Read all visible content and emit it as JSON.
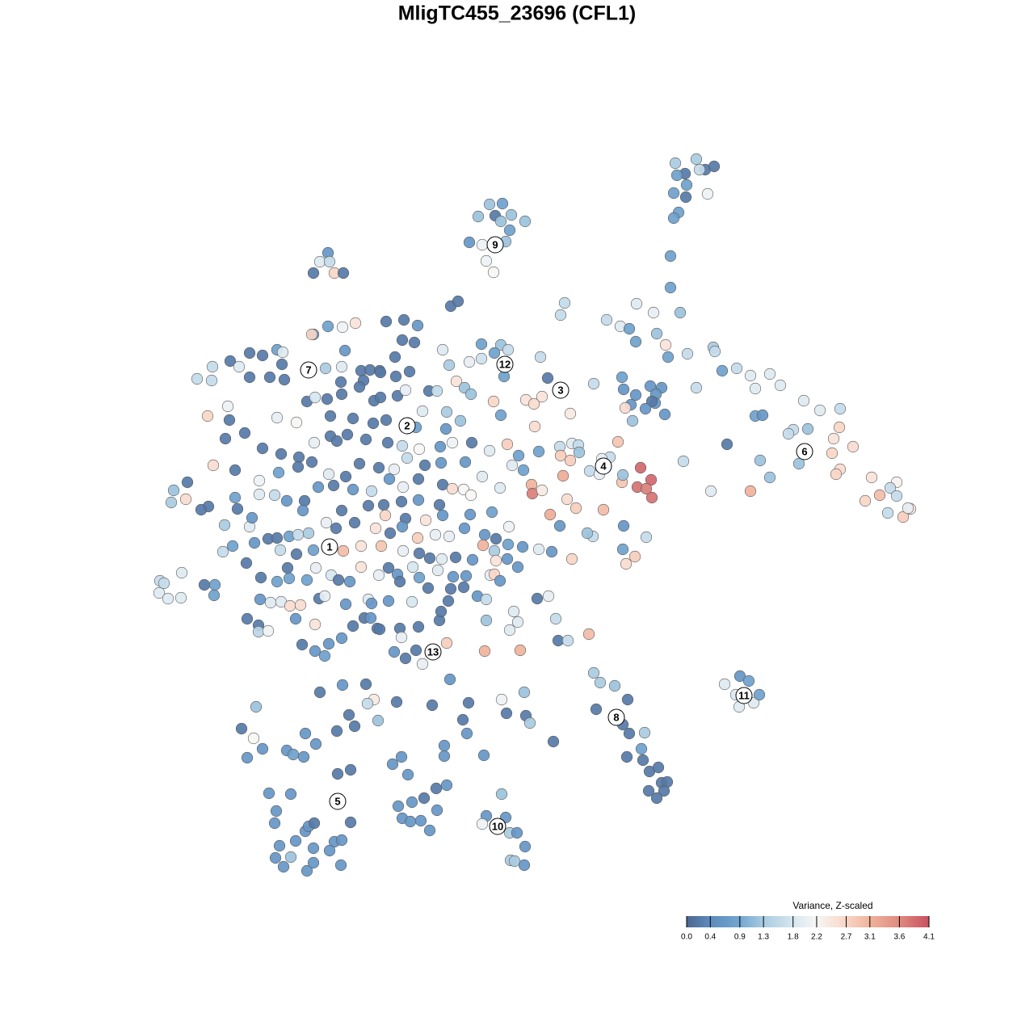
{
  "chart_data": {
    "type": "scatter",
    "title": "MligTC455_23696 (CFL1)",
    "xlim": [
      190,
      1135
    ],
    "ylim": [
      1080,
      190
    ],
    "x": [
      836,
      862,
      873,
      884,
      848,
      838,
      866,
      850,
      834,
      849,
      876,
      840,
      834,
      830,
      830,
      606,
      622,
      592,
      613,
      620,
      633,
      650,
      631,
      581,
      597,
      626,
      602,
      611,
      406,
      396,
      408,
      388,
      414,
      425,
      558,
      567,
      699,
      694,
      788,
      809,
      751,
      768,
      779,
      842,
      813,
      787,
      824,
      827,
      851,
      883,
      885,
      596,
      620,
      629,
      612,
      548,
      596,
      581,
      669,
      624,
      556,
      565,
      575,
      583,
      611,
      651,
      661,
      671,
      678,
      620,
      662,
      706,
      735,
      770,
      772,
      787,
      805,
      819,
      812,
      811,
      807,
      781,
      799,
      774,
      783,
      823,
      862,
      894,
      912,
      929,
      953,
      966,
      935,
      935,
      944,
      995,
      1015,
      1040,
      982,
      976,
      1000,
      1039,
      1032,
      1056,
      900,
      989,
      1030,
      1040,
      1035,
      1079,
      1110,
      1102,
      1110,
      1089,
      1071,
      1099,
      1127,
      1118,
      1124,
      846,
      880,
      929,
      941,
      953,
      693,
      708,
      716,
      694,
      706,
      717,
      765,
      755,
      745,
      730,
      742,
      793,
      806,
      789,
      807,
      770,
      771,
      800,
      697,
      658,
      659,
      671,
      702,
      713,
      681,
      747,
      693,
      734,
      772,
      800,
      771,
      786,
      775,
      708,
      727,
      244,
      263,
      262,
      285,
      296,
      309,
      325,
      343,
      350,
      349,
      309,
      334,
      352,
      388,
      406,
      424,
      440,
      386,
      500,
      517,
      478,
      498,
      513,
      489,
      427,
      403,
      423,
      447,
      458,
      470,
      490,
      507,
      422,
      450,
      471,
      380,
      390,
      405,
      423,
      445,
      463,
      471,
      492,
      502,
      531,
      541,
      282,
      284,
      257,
      279,
      303,
      343,
      367,
      409,
      437,
      462,
      478,
      523,
      553,
      570,
      515,
      552,
      409,
      417,
      430,
      453,
      480,
      498,
      519,
      545,
      560,
      584,
      606,
      628,
      642,
      667,
      325,
      348,
      370,
      386,
      389,
      407,
      428,
      445,
      469,
      488,
      504,
      526,
      546,
      576,
      597,
      634,
      648,
      264,
      291,
      321,
      345,
      369,
      394,
      413,
      437,
      460,
      482,
      499,
      518,
      548,
      560,
      574,
      583,
      619,
      232,
      215,
      212,
      230,
      258,
      249,
      291,
      294,
      321,
      340,
      355,
      377,
      375,
      423,
      456,
      475,
      497,
      518,
      544,
      548,
      477,
      502,
      527,
      582,
      609,
      630,
      278,
      309,
      312,
      332,
      343,
      358,
      369,
      382,
      404,
      416,
      439,
      465,
      483,
      498,
      517,
      539,
      556,
      575,
      600,
      614,
      598,
      612,
      629,
      647,
      667,
      683,
      276,
      288,
      315,
      347,
      367,
      388,
      425,
      447,
      472,
      499,
      519,
      532,
      547,
      564,
      585,
      614,
      641,
      628,
      198,
      203,
      197,
      208,
      224,
      225,
      253,
      266,
      265,
      305,
      323,
      343,
      358,
      356,
      380,
      391,
      410,
      419,
      433,
      447,
      469,
      481,
      492,
      495,
      511,
      519,
      530,
      542,
      561,
      574,
      577,
      558,
      607,
      612,
      619,
      322,
      335,
      348,
      359,
      372,
      395,
      402,
      428,
      456,
      460,
      481,
      510,
      555,
      591,
      602,
      665,
      679,
      306,
      320,
      320,
      332,
      366,
      390,
      437,
      451,
      459,
      467,
      495,
      518,
      544,
      546,
      602,
      636,
      631,
      641,
      688,
      374,
      390,
      402,
      407,
      423,
      470,
      488,
      502,
      497,
      515,
      523,
      553,
      600,
      644,
      691,
      703,
      729,
      735,
      743,
      761,
      777,
      738,
      771,
      779,
      798,
      794,
      776,
      796,
      804,
      815,
      819,
      826,
      822,
      803,
      813,
      916,
      927,
      897,
      911,
      933,
      915,
      940,
      557,
      396,
      424,
      453,
      463,
      455,
      491,
      535,
      580,
      621,
      649,
      317,
      432,
      468,
      439,
      417,
      573,
      578,
      627,
      651,
      656,
      685,
      299,
      314,
      325,
      306,
      355,
      363,
      378,
      376,
      391,
      418,
      434,
      486,
      497,
      505,
      550,
      550,
      599,
      333,
      360,
      342,
      340,
      378,
      382,
      389,
      414,
      423,
      434,
      493,
      510,
      525,
      540,
      553,
      541,
      498,
      508,
      521,
      532,
      621,
      602,
      626,
      597,
      631,
      640,
      650,
      632,
      637,
      649,
      346,
      366,
      388,
      408,
      360,
      341,
      351,
      380,
      388,
      422
    ],
    "y": [
      202,
      197,
      210,
      206,
      215,
      217,
      210,
      229,
      239,
      244,
      240,
      263,
      270,
      317,
      356,
      253,
      252,
      268,
      267,
      274,
      266,
      274,
      285,
      300,
      303,
      299,
      323,
      337,
      313,
      324,
      324,
      338,
      338,
      338,
      379,
      373,
      375,
      390,
      376,
      387,
      396,
      404,
      407,
      387,
      413,
      423,
      427,
      442,
      438,
      430,
      435,
      426,
      427,
      433,
      437,
      433,
      444,
      448,
      442,
      466,
      452,
      472,
      480,
      488,
      497,
      495,
      500,
      491,
      468,
      514,
      528,
      512,
      475,
      467,
      482,
      489,
      478,
      480,
      488,
      499,
      497,
      501,
      506,
      505,
      521,
      513,
      480,
      459,
      456,
      465,
      463,
      477,
      481,
      515,
      514,
      496,
      508,
      506,
      532,
      537,
      531,
      529,
      543,
      553,
      550,
      574,
      561,
      581,
      587,
      591,
      597,
      604,
      614,
      613,
      620,
      635,
      630,
      640,
      629,
      571,
      608,
      608,
      570,
      591,
      553,
      549,
      551,
      564,
      570,
      560,
      547,
      566,
      568,
      583,
      587,
      579,
      594,
      603,
      616,
      597,
      588,
      605,
      589,
      600,
      611,
      607,
      618,
      629,
      637,
      631,
      651,
      664,
      651,
      665,
      680,
      689,
      698,
      692,
      660,
      469,
      454,
      471,
      447,
      454,
      437,
      440,
      433,
      436,
      451,
      467,
      467,
      470,
      414,
      404,
      405,
      400,
      414,
      396,
      403,
      398,
      421,
      424,
      442,
      434,
      456,
      454,
      459,
      458,
      459,
      466,
      460,
      473,
      471,
      461,
      497,
      492,
      494,
      488,
      479,
      496,
      492,
      490,
      483,
      484,
      484,
      503,
      520,
      515,
      543,
      536,
      517,
      523,
      515,
      518,
      524,
      520,
      509,
      510,
      521,
      529,
      531,
      540,
      546,
      538,
      544,
      548,
      552,
      556,
      553,
      548,
      548,
      558,
      550,
      564,
      559,
      555,
      562,
      566,
      572,
      548,
      587,
      590,
      574,
      579,
      581,
      567,
      576,
      573,
      572,
      590,
      576,
      582,
      576,
      582,
      595,
      585,
      578,
      603,
      601,
      606,
      608,
      593,
      603,
      593,
      600,
      605,
      606,
      613,
      604,
      597,
      607,
      622,
      618,
      627,
      631,
      616,
      630,
      612,
      613,
      620,
      620,
      632,
      632,
      626,
      625,
      621,
      619,
      625,
      638,
      638,
      642,
      644,
      637,
      634,
      652,
      650,
      652,
      641,
      667,
      666,
      664,
      662,
      660,
      647,
      654,
      647,
      654,
      660,
      652,
      666,
      662,
      664,
      654,
      662,
      667,
      675,
      682,
      674,
      677,
      680,
      683,
      683,
      676,
      672,
      681,
      686,
      681,
      682,
      676,
      676,
      682,
      685,
      691,
      692,
      690,
      693,
      694,
      702,
      692,
      719,
      722,
      734,
      741,
      740,
      709,
      724,
      724,
      737,
      697,
      715,
      720,
      716,
      703,
      718,
      703,
      712,
      718,
      720,
      702,
      712,
      703,
      711,
      720,
      702,
      715,
      728,
      706,
      714,
      727,
      713,
      729,
      712,
      711,
      719,
      742,
      746,
      745,
      750,
      749,
      741,
      738,
      748,
      742,
      747,
      744,
      745,
      744,
      738,
      742,
      741,
      738,
      766,
      774,
      782,
      781,
      766,
      773,
      775,
      765,
      765,
      778,
      778,
      776,
      768,
      757,
      768,
      757,
      780,
      770,
      766,
      798,
      806,
      812,
      797,
      790,
      779,
      807,
      815,
      789,
      805,
      822,
      796,
      806,
      805,
      793,
      793,
      785,
      833,
      845,
      849,
      866,
      878,
      897,
      908,
      907,
      927,
      937,
      941,
      955,
      950,
      969,
      968,
      979,
      979,
      988,
      837,
      843,
      847,
      860,
      870,
      875,
      860,
      841,
      857,
      848,
      847,
      866,
      871,
      869,
      873,
      870,
      866,
      857,
      875,
      885,
      892,
      899,
      905,
      891,
      908,
      883,
      886,
      895,
      918,
      902,
      914,
      927,
      938,
      929,
      934,
      908,
      937,
      921,
      958,
      953,
      946,
      937,
      959,
      923,
      936,
      935,
      982,
      983,
      1004,
      1019,
      1029,
      1023,
      1019,
      1042,
      1040,
      1018,
      998,
      993,
      988,
      976,
      972,
      1003,
      1013,
      1017,
      1016,
      1028,
      983,
      1010,
      1012,
      1020,
      1031,
      1031,
      1048,
      1065,
      1066,
      1071,
      1047,
      1041,
      1050,
      1053,
      1061,
      1062,
      1073,
      1078,
      1068,
      1071
    ],
    "values": [
      1.3,
      1.3,
      0.2,
      0.2,
      0.2,
      0.8,
      1.6,
      0.8,
      0.8,
      0.2,
      2.1,
      0.8,
      0.8,
      0.8,
      0.8,
      1.2,
      0.8,
      1.2,
      0.2,
      1.2,
      1.2,
      1.2,
      0.8,
      0.6,
      2.1,
      1.2,
      2.1,
      2.2,
      0.6,
      1.9,
      1.6,
      0.2,
      2.7,
      0.2,
      0.2,
      0.2,
      1.6,
      1.6,
      1.9,
      2.0,
      1.6,
      1.9,
      0.8,
      1.2,
      1.2,
      0.8,
      2.5,
      0.8,
      1.6,
      1.3,
      1.6,
      0.8,
      1.2,
      1.6,
      0.8,
      1.9,
      1.7,
      2.0,
      1.6,
      0.8,
      1.3,
      2.5,
      1.2,
      1.2,
      2.7,
      2.5,
      2.6,
      2.5,
      0.2,
      0.8,
      2.6,
      2.4,
      1.6,
      0.8,
      0.6,
      0.6,
      0.6,
      0.6,
      0.6,
      0.6,
      0.2,
      0.6,
      0.6,
      2.6,
      1.2,
      0.6,
      1.6,
      0.8,
      1.6,
      1.9,
      1.9,
      1.9,
      1.9,
      0.8,
      0.6,
      1.9,
      1.9,
      1.6,
      1.6,
      1.6,
      1.2,
      2.7,
      2.5,
      2.6,
      0.2,
      1.2,
      2.7,
      2.6,
      2.7,
      2.5,
      2.3,
      1.6,
      1.6,
      3.0,
      2.7,
      1.6,
      2.5,
      2.8,
      2.0,
      1.6,
      1.9,
      3.1,
      1.2,
      1.2,
      1.6,
      1.9,
      1.6,
      2.8,
      2.8,
      1.2,
      2.9,
      1.6,
      2.0,
      1.6,
      2.0,
      3.9,
      3.9,
      3.8,
      3.8,
      2.9,
      1.2,
      3.7,
      3.2,
      3.1,
      3.7,
      2.4,
      2.6,
      2.8,
      3.2,
      3.0,
      0.6,
      1.6,
      0.6,
      1.6,
      0.8,
      2.8,
      2.6,
      2.7,
      1.2,
      1.6,
      1.6,
      1.6,
      0.2,
      1.9,
      0.2,
      0.2,
      0.8,
      1.9,
      0.2,
      0.2,
      0.2,
      0.2,
      0.6,
      0.8,
      2.1,
      2.5,
      2.7,
      0.2,
      0.6,
      0.2,
      0.2,
      0.2,
      0.2,
      0.6,
      1.3,
      1.9,
      0.2,
      0.2,
      0.2,
      0.2,
      0.2,
      0.2,
      0.2,
      0.2,
      0.2,
      1.8,
      0.2,
      0.2,
      0.2,
      0.2,
      0.2,
      0.2,
      2.0,
      0.2,
      1.6,
      2.1,
      0.2,
      2.7,
      0.2,
      0.2,
      2.0,
      2.2,
      0.2,
      0.2,
      0.2,
      0.2,
      1.9,
      1.3,
      1.2,
      0.8,
      0.6,
      0.2,
      0.2,
      0.2,
      0.2,
      0.2,
      1.6,
      2.2,
      0.6,
      2.1,
      0.2,
      1.9,
      2.8,
      0.8,
      0.8,
      0.2,
      0.2,
      0.2,
      0.2,
      2.0,
      1.9,
      0.2,
      0.2,
      0.2,
      2.0,
      1.6,
      0.2,
      0.6,
      0.6,
      1.9,
      1.9,
      0.8,
      2.6,
      0.2,
      2.1,
      0.8,
      0.2,
      0.6,
      0.2,
      0.6,
      1.6,
      0.6,
      2.0,
      0.2,
      0.2,
      2.6,
      2.2,
      2.2,
      1.9,
      0.2,
      1.2,
      1.3,
      2.6,
      0.2,
      0.2,
      0.8,
      0.2,
      1.9,
      1.6,
      0.6,
      0.2,
      0.6,
      0.2,
      0.2,
      0.2,
      0.2,
      0.6,
      0.2,
      0.6,
      2.7,
      0.2,
      2.5,
      0.6,
      0.8,
      2.1,
      1.3,
      1.9,
      0.6,
      0.2,
      0.2,
      0.8,
      1.6,
      1.3,
      2.0,
      0.2,
      0.2,
      2.5,
      0.2,
      0.6,
      2.8,
      2.0,
      2.0,
      0.6,
      0.6,
      0.2,
      3.1,
      1.3,
      0.8,
      0.6,
      1.9,
      0.6,
      1.6,
      0.8,
      0.6,
      1.6,
      0.2,
      0.8,
      3.0,
      2.5,
      2.9,
      2.0,
      0.2,
      0.2,
      1.9,
      0.2,
      0.6,
      2.5,
      0.6,
      0.6,
      1.6,
      1.6,
      1.9,
      1.9,
      1.9,
      1.9,
      0.2,
      0.8,
      0.8,
      0.2,
      0.2,
      0.8,
      0.8,
      0.2,
      0.8,
      2.0,
      1.8,
      0.2,
      0.6,
      2.5,
      2.0,
      0.2,
      0.6,
      0.2,
      1.8,
      0.8,
      0.2,
      1.9,
      0.6,
      0.2,
      0.6,
      0.2,
      2.0,
      2.7,
      0.6,
      0.6,
      1.9,
      1.9,
      2.6,
      2.6,
      0.2,
      2.0,
      0.6,
      1.9,
      0.6,
      0.6,
      1.8,
      0.2,
      0.6,
      1.6,
      0.2,
      2.0,
      0.2,
      0.2,
      1.5,
      2.1,
      0.6,
      2.5,
      0.2,
      0.2,
      0.6,
      0.2,
      0.2,
      0.2,
      0.2,
      0.2,
      1.2,
      1.9,
      1.9,
      1.9,
      1.6,
      0.2,
      0.6,
      0.8,
      0.6,
      0.6,
      0.2,
      0.6,
      0.2,
      2.0,
      0.2,
      2.0,
      2.8,
      3.1,
      3.1,
      0.2,
      1.6,
      3.0,
      1.3,
      1.3,
      1.2,
      0.2,
      0.2,
      0.2,
      0.2,
      1.3,
      0.8,
      0.2,
      0.2,
      0.2,
      0.2,
      0.2,
      0.2,
      0.2,
      0.2,
      0.2,
      0.6,
      0.8,
      1.9,
      1.9,
      1.9,
      1.9,
      0.8,
      0.6,
      0.2,
      0.6,
      0.2,
      2.4,
      1.6,
      0.2,
      0.2,
      0.2,
      2.1,
      1.2,
      1.2,
      0.2,
      1.2,
      0.2,
      0.2,
      0.2,
      0.6,
      0.2,
      0.2,
      1.3,
      0.2,
      0.2,
      2.2,
      0.6,
      0.6,
      0.6,
      0.8,
      0.6,
      0.6,
      0.6,
      0.2,
      0.2,
      0.6,
      0.6,
      0.6,
      0.6,
      0.6,
      0.6,
      0.6,
      0.6,
      0.6,
      0.6,
      0.6,
      0.6,
      0.2,
      0.6,
      0.6,
      0.2,
      0.6,
      0.6,
      0.2,
      0.2,
      0.6,
      0.6,
      0.6,
      0.6,
      0.6,
      0.6,
      1.2,
      0.6,
      0.6,
      2.1,
      1.3,
      0.6,
      0.6,
      1.3,
      1.3,
      0.6,
      0.6,
      0.6,
      0.6,
      0.6,
      1.2,
      0.6,
      0.6,
      0.6,
      0.6,
      0.6
    ],
    "cluster_labels": {
      "labels": [
        "1",
        "2",
        "3",
        "4",
        "5",
        "6",
        "7",
        "8",
        "9",
        "10",
        "11",
        "12",
        "13"
      ],
      "x": [
        408,
        504,
        694,
        747,
        418,
        996,
        382,
        763,
        613,
        616,
        921,
        625,
        536
      ],
      "y": [
        677,
        527,
        483,
        577,
        992,
        559,
        458,
        888,
        303,
        1023,
        861,
        451,
        807
      ]
    },
    "colorbar": {
      "title": "Variance, Z-scaled",
      "lim": [
        0,
        4.1
      ],
      "ticks": [
        {
          "value": 0,
          "label": "0.0"
        },
        0.4,
        0.9,
        1.3,
        1.8,
        2.2,
        2.7,
        3.1,
        3.6,
        4.1
      ],
      "colors": [
        "#4c6690",
        "#5d8cbd",
        "#72a6d0",
        "#a9cbe0",
        "#d6e6f0",
        "#f7f6f5",
        "#f8d6c6",
        "#f0b39c",
        "#e08a7f",
        "#c8505f"
      ]
    }
  }
}
